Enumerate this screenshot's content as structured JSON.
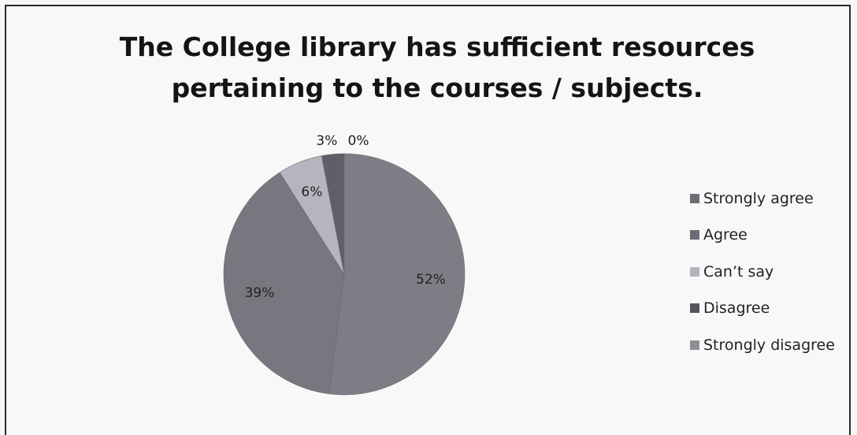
{
  "title": {
    "line1": "The College library has sufficient resources",
    "line2": "pertaining to the courses / subjects."
  },
  "chart_data": {
    "type": "pie",
    "title": "The College library has sufficient resources pertaining to the courses / subjects.",
    "slices": [
      {
        "label": "Strongly agree",
        "value": 52,
        "value_label": "52%",
        "color": "#7d7d85"
      },
      {
        "label": "Agree",
        "value": 39,
        "value_label": "39%",
        "color": "#77777f"
      },
      {
        "label": "Can't say",
        "value": 6,
        "value_label": "6%",
        "color": "#b5b5bf"
      },
      {
        "label": "Disagree",
        "value": 3,
        "value_label": "3%",
        "color": "#5f5f68"
      },
      {
        "label": "Strongly disagree",
        "value": 0,
        "value_label": "0%",
        "color": "#8e8e96"
      }
    ],
    "legend_position": "right"
  },
  "legend": {
    "items": [
      {
        "label": "Strongly agree",
        "color": "#6e6e78"
      },
      {
        "label": "Agree",
        "color": "#6b6b75"
      },
      {
        "label": "Can’t say",
        "color": "#b3b3bd"
      },
      {
        "label": "Disagree",
        "color": "#55555e"
      },
      {
        "label": "Strongly disagree",
        "color": "#8f8f98"
      }
    ]
  }
}
